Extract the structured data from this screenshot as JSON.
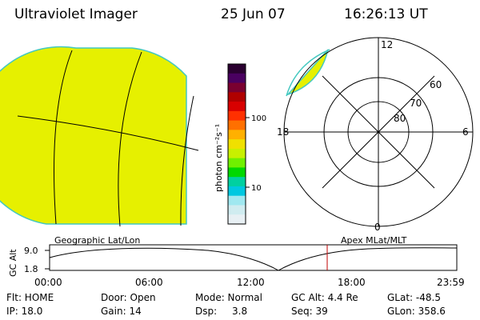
{
  "header": {
    "title": "Ultraviolet Imager",
    "date": "25 Jun 07",
    "time": "16:26:13 UT"
  },
  "image_colors": {
    "fill": "#e6f000",
    "edge": "#44c8c0",
    "grid": "#000000",
    "marker": "#c00000"
  },
  "colorbar": {
    "label": "photon cm⁻²s⁻¹",
    "ticks": [
      "100",
      "10"
    ],
    "colors": [
      "#2a0030",
      "#4a0060",
      "#7a0030",
      "#b00000",
      "#d80000",
      "#ff3000",
      "#ff7000",
      "#ffb000",
      "#f0e000",
      "#c8f000",
      "#70f000",
      "#00d800",
      "#00d0a0",
      "#00c8e0",
      "#a0e8f0",
      "#d0ecf0",
      "#e8f0f4"
    ]
  },
  "polar_labels": {
    "mlt_top": "12",
    "mlt_left": "18",
    "mlt_right": "6",
    "mlt_bottom": "0",
    "lat_60": "60",
    "lat_70": "70",
    "lat_80": "80"
  },
  "map_labels": {
    "left": "Geographic Lat/Lon",
    "right": "Apex  MLat/MLT"
  },
  "altitude_plot": {
    "ylabel": "GC Alt",
    "ytick_top": "9.0",
    "ytick_bottom": "1.8",
    "xticks": [
      "00:00",
      "06:00",
      "12:00",
      "18:00",
      "23:59"
    ],
    "current_time": "16:26"
  },
  "status": {
    "flt": "Flt: HOME",
    "ip": "IP: 18.0",
    "door": "Door: Open",
    "gain": "Gain: 14",
    "mode": "Mode: Normal",
    "dsp_label": "Dsp:",
    "dsp_value": "3.8",
    "gcalt": "GC Alt: 4.4 Re",
    "seq": "Seq: 39",
    "glat": "GLat: -48.5",
    "glon": "GLon: 358.6"
  }
}
